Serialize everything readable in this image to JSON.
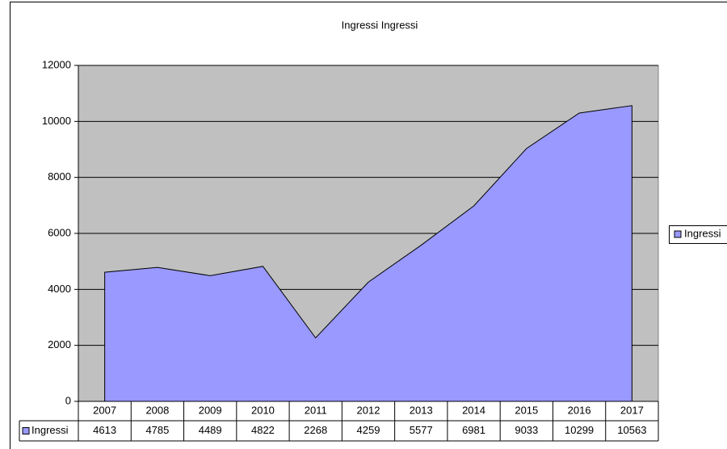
{
  "chart_data": {
    "type": "area",
    "title": "Ingressi Ingressi",
    "categories": [
      "2007",
      "2008",
      "2009",
      "2010",
      "2011",
      "2012",
      "2013",
      "2014",
      "2015",
      "2016",
      "2017"
    ],
    "series": [
      {
        "name": "Ingressi",
        "color": "#9999ff",
        "values": [
          4613,
          4785,
          4489,
          4822,
          2268,
          4259,
          5577,
          6981,
          9033,
          10299,
          10563
        ]
      }
    ],
    "ylim": [
      0,
      12000
    ],
    "yticks": [
      0,
      2000,
      4000,
      6000,
      8000,
      10000,
      12000
    ],
    "grid": true,
    "legend": "right",
    "plot_background": "#c0c0c0"
  }
}
